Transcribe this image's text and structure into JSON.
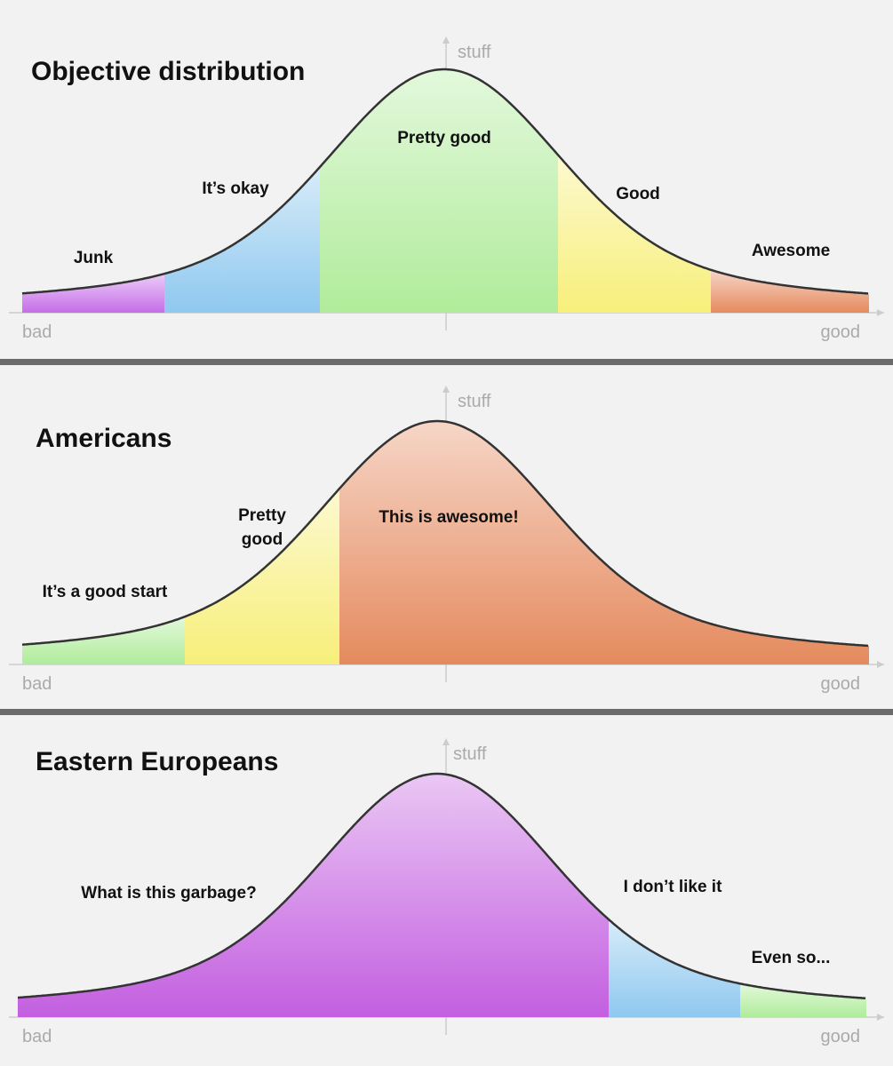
{
  "panels": [
    {
      "title": "Objective distribution",
      "y_axis": "stuff",
      "x_left": "bad",
      "x_right": "good",
      "regions": [
        {
          "label_lines": [
            "Junk"
          ],
          "color": "#c56ee8"
        },
        {
          "label_lines": [
            "It’s okay"
          ],
          "color": "#8fc8ef"
        },
        {
          "label_lines": [
            "Pretty good"
          ],
          "color": "#b0ec9a"
        },
        {
          "label_lines": [
            "Good"
          ],
          "color": "#f7ef7a"
        },
        {
          "label_lines": [
            "Awesome"
          ],
          "color": "#e58a5e"
        }
      ]
    },
    {
      "title": "Americans",
      "y_axis": "stuff",
      "x_left": "bad",
      "x_right": "good",
      "regions": [
        {
          "label_lines": [
            "It’s a good start"
          ],
          "color": "#b0ec9a"
        },
        {
          "label_lines": [
            "Pretty",
            "good"
          ],
          "color": "#f7ef7a"
        },
        {
          "label_lines": [
            "This is awesome!"
          ],
          "color": "#e58a5e"
        }
      ]
    },
    {
      "title": "Eastern Europeans",
      "y_axis": "stuff",
      "x_left": "bad",
      "x_right": "good",
      "regions": [
        {
          "label_lines": [
            "What is this garbage?"
          ],
          "color": "#c35fe0"
        },
        {
          "label_lines": [
            "I don’t like it"
          ],
          "color": "#8fc8ef"
        },
        {
          "label_lines": [
            "Even so..."
          ],
          "color": "#b0ec9a"
        }
      ]
    }
  ]
}
